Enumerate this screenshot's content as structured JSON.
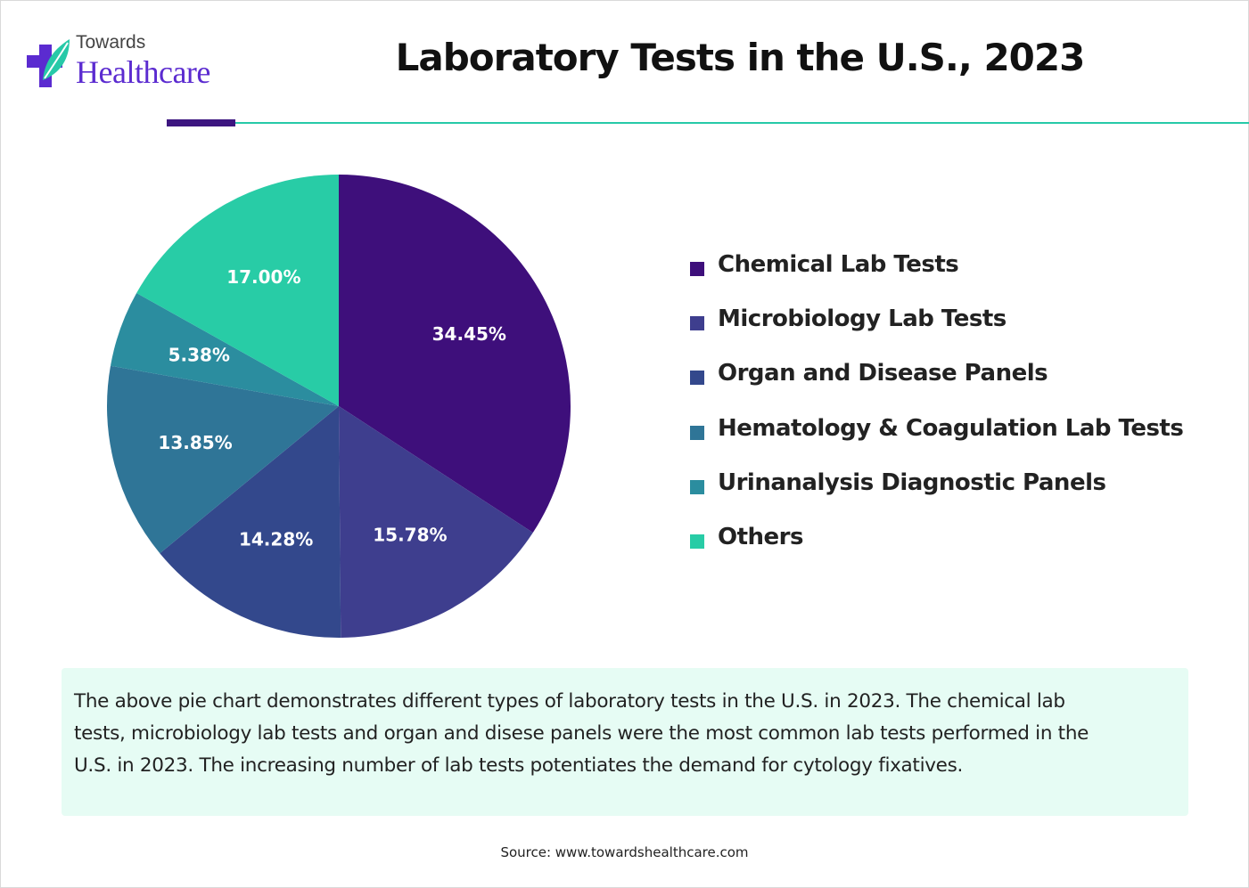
{
  "brand": {
    "top": "Towards",
    "name": "Healthcare"
  },
  "title": "Laboratory Tests in the U.S., 2023",
  "colors": {
    "accent_purple": "#3d1680",
    "accent_teal": "#27c9a8",
    "box_bg": "#e6fcf4"
  },
  "chart_data": {
    "type": "pie",
    "title": "Laboratory Tests in the U.S., 2023",
    "legend_position": "right",
    "slices": [
      {
        "label": "Chemical Lab Tests",
        "value": 34.45,
        "display": "34.45%",
        "color": "#3e0f7b"
      },
      {
        "label": "Microbiology Lab Tests",
        "value": 15.78,
        "display": "15.78%",
        "color": "#3e3e8e"
      },
      {
        "label": "Organ and Disease Panels",
        "value": 14.28,
        "display": "14.28%",
        "color": "#33488c"
      },
      {
        "label": "Hematology & Coagulation Lab Tests",
        "value": 13.85,
        "display": "13.85%",
        "color": "#2f7597"
      },
      {
        "label": "Urinanalysis Diagnostic Panels",
        "value": 5.38,
        "display": "5.38%",
        "color": "#2b8d9f"
      },
      {
        "label": "Others",
        "value": 17.0,
        "display": "17.00%",
        "color": "#28cca6"
      }
    ]
  },
  "description": "The above pie chart demonstrates different types of laboratory tests in the U.S. in 2023. The chemical lab tests, microbiology lab tests and organ and disese panels were the most common lab tests performed in the U.S. in 2023. The increasing number of lab tests potentiates the demand for cytology fixatives.",
  "source": "Source: www.towardshealthcare.com"
}
